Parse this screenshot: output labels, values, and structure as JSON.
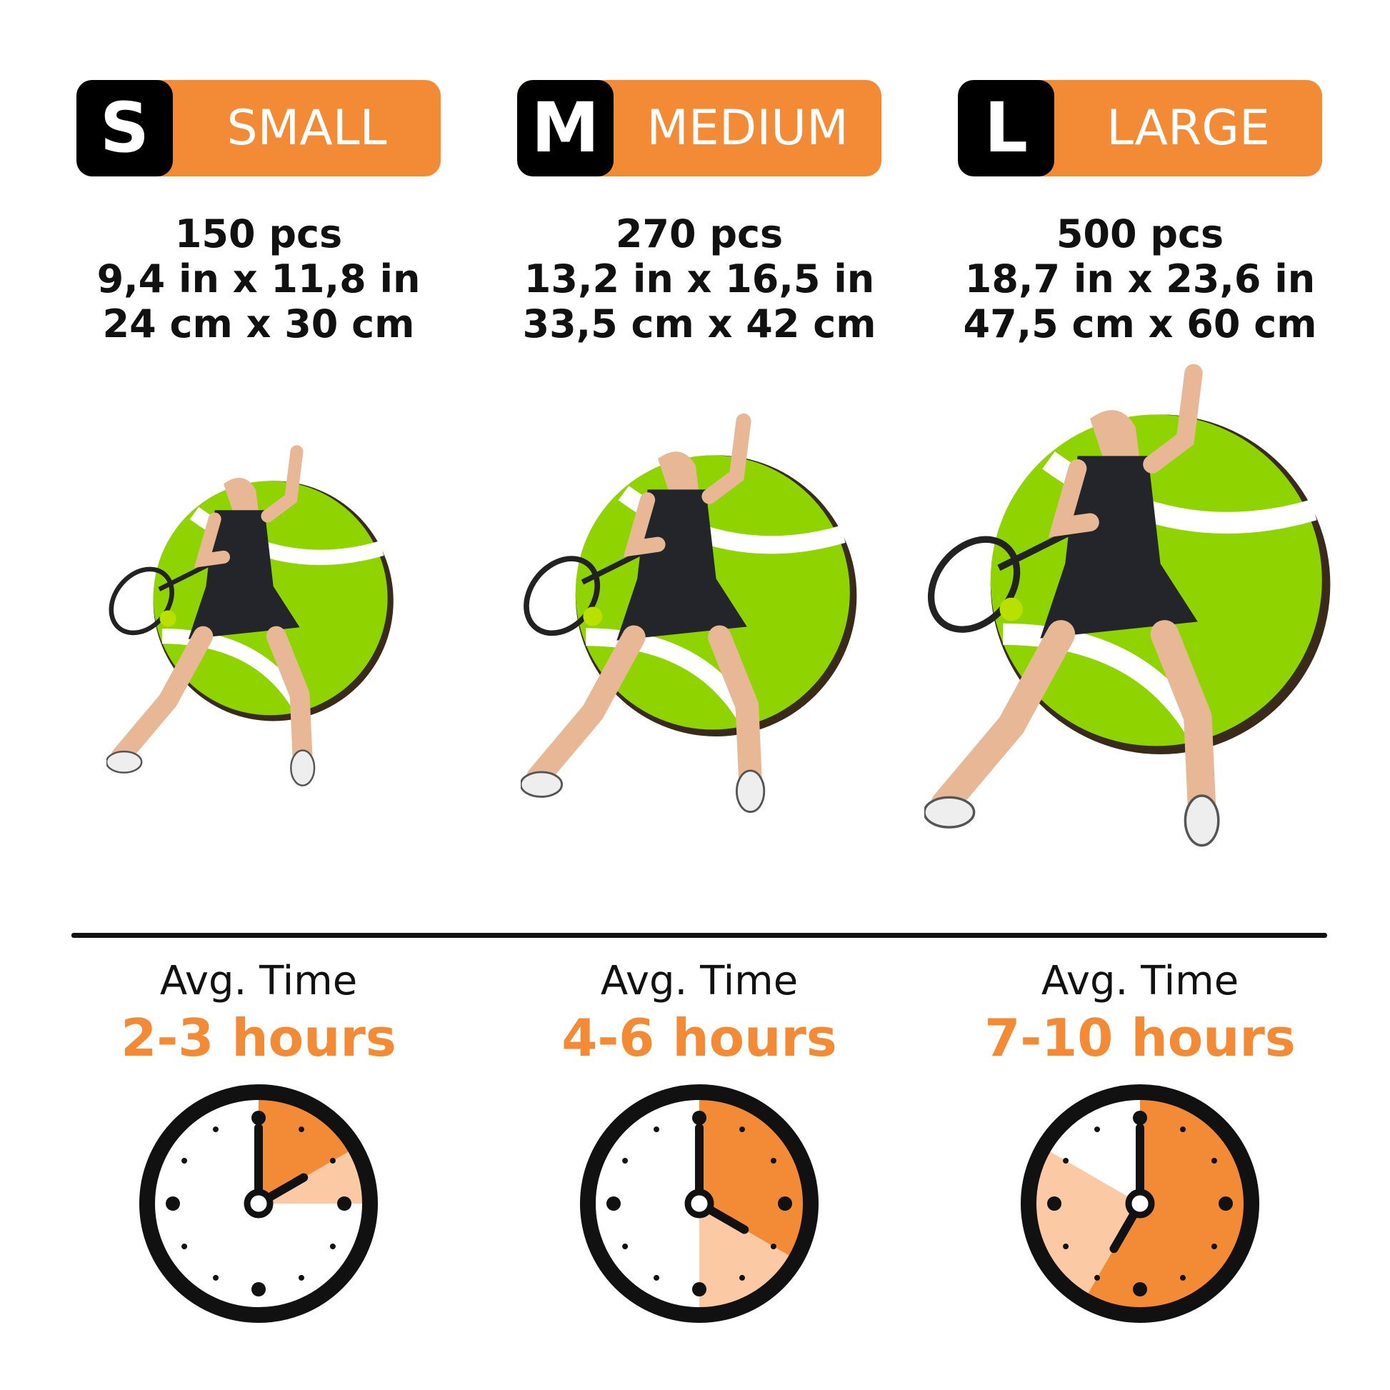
{
  "colors": {
    "accent": "#f38a35",
    "accent_light": "#fbc9a3",
    "ball": "#8fd400",
    "ink": "#111111"
  },
  "sizes": [
    {
      "letter": "S",
      "name": "SMALL",
      "pieces": "150 pcs",
      "inches": "9,4 in x 11,8 in",
      "cm": "24 cm x 30 cm",
      "avg_label": "Avg. Time",
      "hours": "2-3 hours",
      "clock": {
        "min_hours": 2,
        "max_hours": 3,
        "hour_hand": 2
      }
    },
    {
      "letter": "M",
      "name": "MEDIUM",
      "pieces": "270 pcs",
      "inches": "13,2 in x 16,5 in",
      "cm": "33,5 cm x 42 cm",
      "avg_label": "Avg. Time",
      "hours": "4-6 hours",
      "clock": {
        "min_hours": 4,
        "max_hours": 6,
        "hour_hand": 4
      }
    },
    {
      "letter": "L",
      "name": "LARGE",
      "pieces": "500 pcs",
      "inches": "18,7 in x 23,6 in",
      "cm": "47,5 cm x 60 cm",
      "avg_label": "Avg. Time",
      "hours": "7-10 hours",
      "clock": {
        "min_hours": 7,
        "max_hours": 10,
        "hour_hand": 7
      }
    }
  ]
}
